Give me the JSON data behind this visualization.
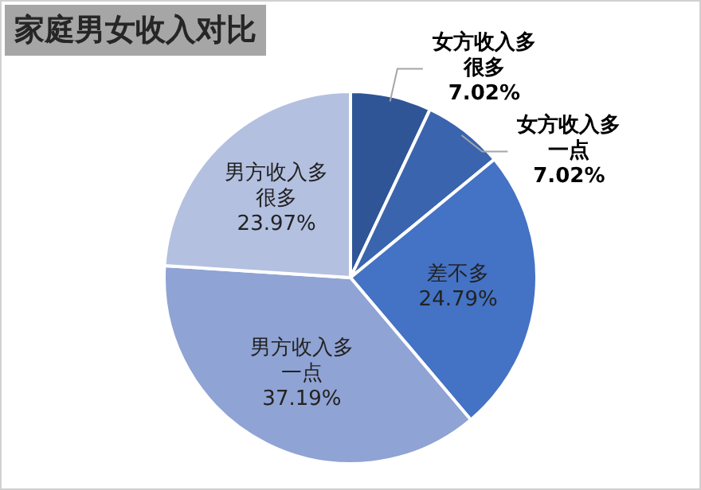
{
  "chart_data": {
    "type": "pie",
    "title": "家庭男女收入对比",
    "categories": [
      "女方收入多很多",
      "女方收入多一点",
      "差不多",
      "男方收入多一点",
      "男方收入多很多"
    ],
    "values": [
      7.02,
      7.02,
      24.79,
      37.19,
      23.97
    ],
    "colors": [
      "#2f5597",
      "#3a64ae",
      "#4472c4",
      "#8fa3d4",
      "#b4c0e0"
    ],
    "value_labels": [
      "7.02%",
      "7.02%",
      "24.79%",
      "37.19%",
      "23.97%"
    ]
  }
}
